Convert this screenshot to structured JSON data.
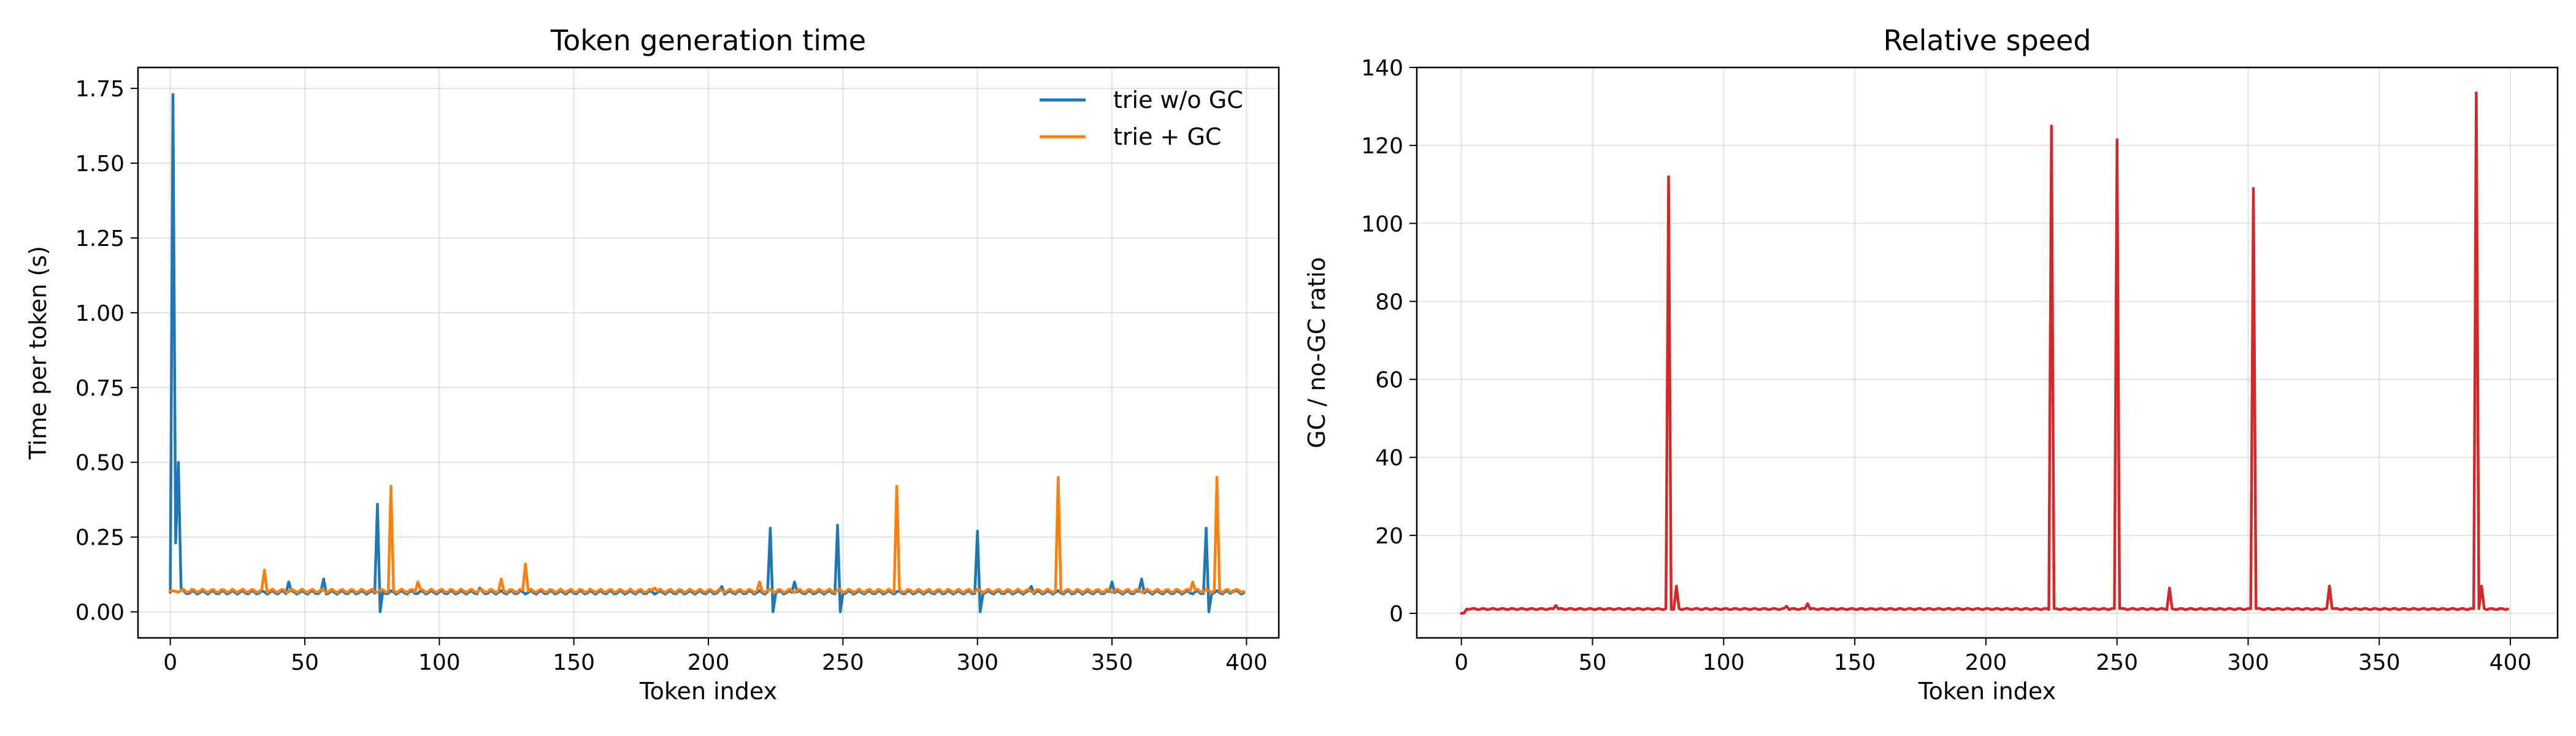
{
  "chart_data": [
    {
      "type": "line",
      "title": "Token generation time",
      "xlabel": "Token index",
      "ylabel": "Time per token (s)",
      "xlim": [
        -12,
        412
      ],
      "ylim": [
        -0.087,
        1.82
      ],
      "xticks": [
        0,
        50,
        100,
        150,
        200,
        250,
        300,
        350,
        400
      ],
      "yticks": [
        0.0,
        0.25,
        0.5,
        0.75,
        1.0,
        1.25,
        1.5,
        1.75
      ],
      "yticks_labels": [
        "0.00",
        "0.25",
        "0.50",
        "0.75",
        "1.00",
        "1.25",
        "1.50",
        "1.75"
      ],
      "grid": true,
      "legend_position": "top-right",
      "series": [
        {
          "name": "trie w/o GC",
          "color": "#1f77b4",
          "baseline": 0.065,
          "points": [
            [
              1,
              1.73
            ],
            [
              2,
              0.23
            ],
            [
              3,
              0.5
            ],
            [
              4,
              0.08
            ],
            [
              5,
              0.07
            ],
            [
              44,
              0.1
            ],
            [
              57,
              0.11
            ],
            [
              77,
              0.36
            ],
            [
              78,
              0.0
            ],
            [
              115,
              0.08
            ],
            [
              205,
              0.085
            ],
            [
              223,
              0.28
            ],
            [
              224,
              0.0
            ],
            [
              232,
              0.1
            ],
            [
              248,
              0.29
            ],
            [
              249,
              0.0
            ],
            [
              300,
              0.27
            ],
            [
              301,
              0.0
            ],
            [
              320,
              0.085
            ],
            [
              350,
              0.1
            ],
            [
              361,
              0.11
            ],
            [
              385,
              0.28
            ],
            [
              386,
              0.0
            ],
            [
              395,
              0.07
            ]
          ]
        },
        {
          "name": "trie + GC",
          "color": "#ff7f0e",
          "baseline": 0.07,
          "points": [
            [
              1,
              0.07
            ],
            [
              35,
              0.14
            ],
            [
              82,
              0.42
            ],
            [
              92,
              0.1
            ],
            [
              123,
              0.11
            ],
            [
              132,
              0.16
            ],
            [
              180,
              0.08
            ],
            [
              219,
              0.1
            ],
            [
              270,
              0.42
            ],
            [
              330,
              0.45
            ],
            [
              380,
              0.1
            ],
            [
              389,
              0.45
            ]
          ]
        }
      ]
    },
    {
      "type": "line",
      "title": "Relative speed",
      "xlabel": "Token index",
      "ylabel": "GC / no-GC ratio",
      "xlim": [
        -17,
        418
      ],
      "ylim": [
        -6.3,
        140
      ],
      "xticks": [
        0,
        50,
        100,
        150,
        200,
        250,
        300,
        350,
        400
      ],
      "yticks": [
        0,
        20,
        40,
        60,
        80,
        100,
        120,
        140
      ],
      "yticks_labels": [
        "0",
        "20",
        "40",
        "60",
        "80",
        "100",
        "120",
        "140"
      ],
      "grid": true,
      "series": [
        {
          "color": "#d62728",
          "baseline": 1.1,
          "points": [
            [
              0,
              0.0
            ],
            [
              1,
              0.05
            ],
            [
              3,
              1.0
            ],
            [
              36,
              2.0
            ],
            [
              79,
              112.0
            ],
            [
              80,
              1.0
            ],
            [
              82,
              7.0
            ],
            [
              83,
              1.2
            ],
            [
              124,
              1.8
            ],
            [
              132,
              2.5
            ],
            [
              225,
              125.0
            ],
            [
              226,
              1.2
            ],
            [
              250,
              121.5
            ],
            [
              251,
              1.2
            ],
            [
              270,
              6.5
            ],
            [
              271,
              1.2
            ],
            [
              302,
              109.0
            ],
            [
              303,
              1.2
            ],
            [
              331,
              7.0
            ],
            [
              332,
              1.2
            ],
            [
              387,
              133.5
            ],
            [
              388,
              1.2
            ],
            [
              389,
              7.0
            ],
            [
              390,
              1.2
            ],
            [
              399,
              1.1
            ]
          ]
        }
      ]
    }
  ]
}
